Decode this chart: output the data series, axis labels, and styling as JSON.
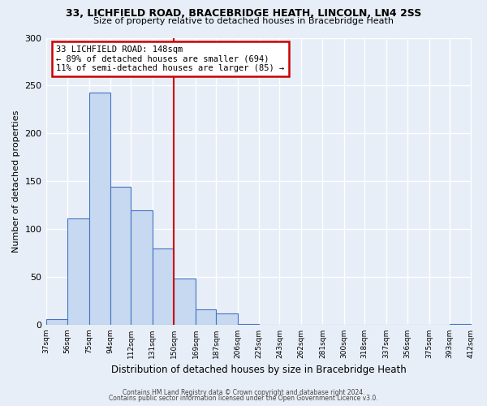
{
  "title1": "33, LICHFIELD ROAD, BRACEBRIDGE HEATH, LINCOLN, LN4 2SS",
  "title2": "Size of property relative to detached houses in Bracebridge Heath",
  "xlabel": "Distribution of detached houses by size in Bracebridge Heath",
  "ylabel": "Number of detached properties",
  "bin_labels": [
    "37sqm",
    "56sqm",
    "75sqm",
    "94sqm",
    "112sqm",
    "131sqm",
    "150sqm",
    "169sqm",
    "187sqm",
    "206sqm",
    "225sqm",
    "243sqm",
    "262sqm",
    "281sqm",
    "300sqm",
    "318sqm",
    "337sqm",
    "356sqm",
    "375sqm",
    "393sqm",
    "412sqm"
  ],
  "bin_edges": [
    37,
    56,
    75,
    94,
    112,
    131,
    150,
    169,
    187,
    206,
    225,
    243,
    262,
    281,
    300,
    318,
    337,
    356,
    375,
    393,
    412
  ],
  "bar_heights": [
    6,
    111,
    243,
    144,
    120,
    80,
    48,
    16,
    12,
    1,
    0,
    0,
    0,
    0,
    0,
    0,
    0,
    0,
    0,
    1
  ],
  "bar_color": "#c6d9f0",
  "bar_edge_color": "#4472c4",
  "vline_x": 150,
  "vline_color": "#cc0000",
  "annotation_title": "33 LICHFIELD ROAD: 148sqm",
  "annotation_line1": "← 89% of detached houses are smaller (694)",
  "annotation_line2": "11% of semi-detached houses are larger (85) →",
  "annotation_box_color": "#cc0000",
  "ylim": [
    0,
    300
  ],
  "yticks": [
    0,
    50,
    100,
    150,
    200,
    250,
    300
  ],
  "footer1": "Contains HM Land Registry data © Crown copyright and database right 2024.",
  "footer2": "Contains public sector information licensed under the Open Government Licence v3.0.",
  "background_color": "#e8eef7",
  "plot_bg_color": "#e8eef7",
  "grid_color": "#ffffff"
}
